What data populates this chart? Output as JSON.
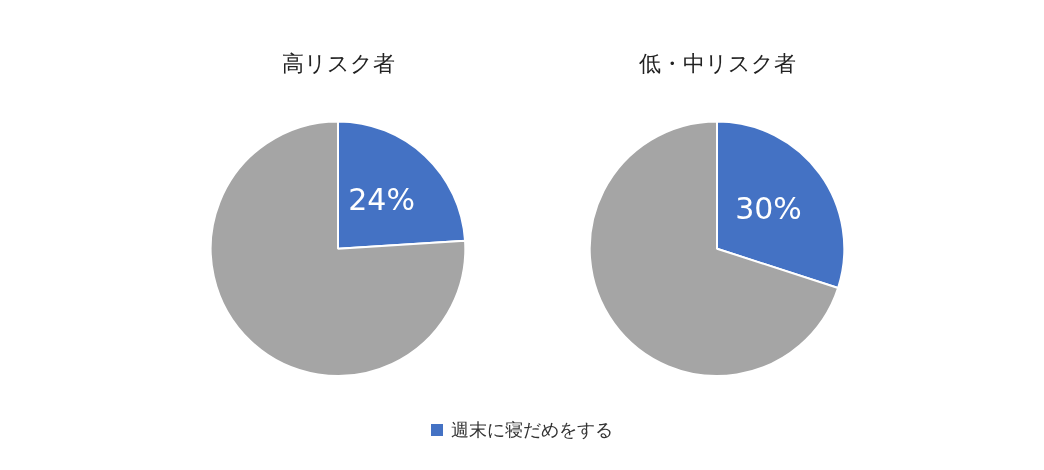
{
  "chart_data": [
    {
      "type": "pie",
      "title": "高リスク者",
      "categories": [
        "週末に寝だめをする",
        null
      ],
      "values": [
        24,
        76
      ],
      "colors": [
        "#4472c4",
        "#a5a5a5"
      ],
      "value_labels": [
        "24%",
        null
      ],
      "legend": "bottom"
    },
    {
      "type": "pie",
      "title": "低・中リスク者",
      "categories": [
        null,
        null
      ],
      "values": [
        30,
        70
      ],
      "colors": [
        "#4472c4",
        "#a5a5a5"
      ],
      "value_labels": [
        "30%",
        null
      ]
    }
  ]
}
